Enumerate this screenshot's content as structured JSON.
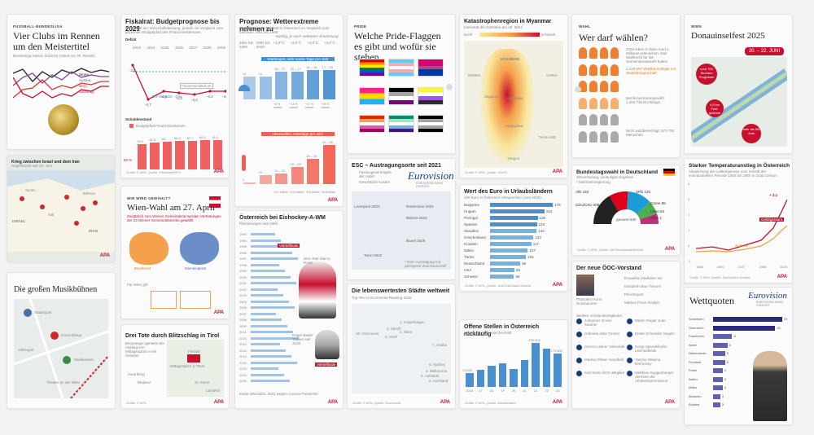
{
  "colors": {
    "red": "#c8102e",
    "blue": "#4a8fd0",
    "orange": "#f08030",
    "grey": "#888"
  },
  "c1": {
    "kicker": "FUSSBALL-BUNDESLIGA",
    "title": "Vier Clubs im Rennen um den Meistertitel",
    "sub": "Bundesliga-Saison 2024/25 (Stand vor 30. Runde)",
    "teams": [
      "Sturm",
      "Austria",
      "WAC",
      "Salzburg"
    ],
    "team_colors": [
      "#222",
      "#7a4a9a",
      "#d33",
      "#c8102e"
    ]
  },
  "c2": {
    "title": "Krieg zwischen Israel und dem Iran",
    "sub": "Angriffsziele seit 13. Juni",
    "labels": [
      "Syrien",
      "Irak",
      "ISRAEL",
      "Teheran",
      "IRAN"
    ]
  },
  "c3": {
    "title": "Die großen Musikbühnen",
    "labels": [
      "Staatsoper",
      "Volksoper",
      "Konzerthaus",
      "Musikverein",
      "Theater an der Wien"
    ]
  },
  "c4": {
    "title": "Fiskalrat: Budgetprognose bis 2029",
    "sub": "In Prozent der Wirtschaftsleistung, jeweils mit Vergleich zum geplanten Budgetpfad des Finanzministeriums",
    "defizit_label": "Defizit",
    "years": [
      "2023",
      "2024",
      "2025",
      "2026",
      "2027",
      "2028",
      "2029"
    ],
    "line_values": [
      -2.6,
      -4.7,
      -4.2,
      -4.3,
      -4.4,
      -4.2,
      -4.2
    ],
    "annotation": "EU-Vorgabe: -3 %",
    "ministry": "Finanzministerium",
    "schulden_label": "Schuldenstand",
    "schulden_legend": "Budgetpfad Finanzministerium",
    "debt_values": [
      78.5,
      81.8,
      84.0,
      86.3,
      87.7,
      89.4,
      91.1
    ],
    "pct_label": "60 %",
    "source": "Grafik: © APA, Quelle: Fiskalrat/WIFO"
  },
  "c5": {
    "kicker": "WIR WIRD GEWÄHLT?",
    "title": "Wien-Wahl am 27. April",
    "text": "Zusätzlich zum Wiener Gemeinderat werden Vertretungen der 23 Wiener Gemeindebezirke gewählt",
    "labels": [
      "Bezirksrat",
      "Gemeinderat"
    ],
    "footer": "Für Wien gilt:",
    "apa": "APA"
  },
  "c6": {
    "title": "Drei Tote durch Blitzschlag in Tirol",
    "text": "Bergsteiger gerieten bei Abstieg von Mittagsspitze in ein Gewitter",
    "labels": [
      "Vorarlberg",
      "Bludenz",
      "St. Anton",
      "Landeck",
      "Mittagsspitze 2.705m",
      "Fimbah"
    ],
    "source": "Grafik: © APA"
  },
  "c7": {
    "title": "Prognose: Wetterextreme nehmen zu",
    "sub": "Häufigkeit und Intensität in Österreich im Vergleich zum Zeitraum 1961 bis 1990",
    "scen": "Künftig, je nach weltweiter Erwärmung",
    "cols": [
      "1961 bis 1990",
      "1991 bis 2020",
      "+1,5°C",
      "+2,0°C",
      "+3,0°C",
      "+4,0°C"
    ],
    "b1_title": "Starkregen, sehr nasse Tage pro Jahr",
    "b1_vals": [
      "14",
      "14",
      "16 – 17",
      "16 – 17",
      "16 – 18",
      "17 – 18"
    ],
    "b1_pct": [
      "",
      "",
      "+6 % nasser",
      "+14 % nasser",
      "+17 % nasser",
      "+25 % nasser"
    ],
    "b2_title": "Hitzewellen, Hitzetage pro Jahr",
    "b2_vals": [
      "2",
      "12",
      "11 – 15",
      "15 – 23",
      "18 – 34",
      "24 – 55"
    ],
    "b2_pct": [
      "",
      "",
      "+2,1 heißer",
      "+3,5 heißer",
      "+5,6 heißer",
      "+6,8 heißer"
    ],
    "apa": "APA"
  },
  "c8": {
    "title": "Österreich bei Eishockey-A-WM",
    "sub": "Platzierungen seit 1993",
    "years": [
      "1993",
      "1994",
      "1995",
      "1996",
      "1997",
      "1998",
      "1999",
      "2000",
      "2001",
      "2002",
      "2003",
      "2004",
      "2005",
      "2007",
      "2008",
      "2009",
      "2011",
      "2013",
      "2015",
      "2018",
      "2019",
      "2022",
      "2023",
      "2024",
      "2025"
    ],
    "tag1": "Viertelfinale",
    "tag2": "Viertelfinale",
    "person1": "NHL-Star Marco Rossi",
    "person2": "Roger Bader Trainer seit 2018",
    "footer": "Keine WM 2020, 2021 wegen Corona-Pandemie"
  },
  "c9": {
    "kicker": "PRIDE",
    "title": "Welche Pride-Flaggen es gibt und wofür sie stehen"
  },
  "c10": {
    "title": "ESC – Austragungsorte seit 2021",
    "legend1": "Fassungsvermögen der Halle*",
    "legend2": "Geschätzte Kosten",
    "cities": [
      "Liverpool 2023",
      "Malmö 2024",
      "Turin 2022",
      "Basel 2025",
      "Rotterdam 2021"
    ],
    "esc": "EUROVISION SONG CONTEST",
    "note": "* ESC-Austragung mit geringerer Zuschauerzahl"
  },
  "c11": {
    "title": "Die lebenswertesten Städte weltweit",
    "sub": "Top-Ten im Economist-Ranking 2025",
    "cities": [
      "1. Kopenhagen",
      "2. Wien",
      "3. Zürich",
      "4. Melbourne",
      "5. Genf",
      "6. Sydney",
      "7. Osaka",
      "8. Auckland",
      "9. Adelaide",
      "10. Vancouver"
    ],
    "source": "Grafik: © APA, Quelle: Economist"
  },
  "c12": {
    "title": "Katastrophenregion in Myanmar",
    "sub": "Intensität der Erdstöße am 28. März",
    "leg_lo": "leicht",
    "leg_hi": "schwach",
    "labels": [
      "MYANMAR",
      "INDIEN",
      "CHINA",
      "THAILAND",
      "Mandalay",
      "Naypyidaw",
      "Yangon",
      "Sagaing"
    ],
    "source": "Grafik: © APA, Quelle: USGS"
  },
  "c13": {
    "title": "Wert des Euro in Urlaubsländern",
    "sub": "100 Euro in Österreich entsprechen (Juni 2025) ...",
    "countries": [
      "Bulgarien",
      "Ungarn",
      "Portugal",
      "Spanien",
      "Slowakei",
      "Griechenland",
      "Kroatien",
      "Italien",
      "Türkei",
      "Deutschland",
      "USA",
      "Schweiz"
    ],
    "values": [
      178,
      154,
      135,
      133,
      132,
      123,
      117,
      107,
      102,
      86,
      69,
      68
    ],
    "source": "Grafik: © APA, Quelle: UniCredit Bank Austria"
  },
  "c14": {
    "title": "Offene Stellen in Österreich rückläufig",
    "sub": "jeweils im Jahresdurchschnitt",
    "years": [
      "2016",
      "17",
      "18",
      "19",
      "20",
      "21",
      "22",
      "23",
      "24"
    ],
    "values": [
      73500,
      90000,
      110000,
      125000,
      95000,
      140000,
      230400,
      200000,
      173800
    ],
    "labels": [
      "73.500",
      "",
      "",
      "",
      "",
      "",
      "230.400",
      "",
      "173.800"
    ],
    "source": "Grafik: © APA, Quelle: Arbeitsmarkt"
  },
  "c15": {
    "kicker": "WAHL",
    "title": "Wer darf wählen?",
    "lines": [
      "2025 leben in Wien rund 2 Millionen Menschen. Das Wahlrecht für die Gemeinderatswahl haben",
      "1.129.507 Wahlberechtigte mit Staatsbürgerschaft",
      "Bezirksvertretungswahl: 1.364.745 EU-Bürger",
      "Nicht wahlberechtigt: 570.793 Menschen"
    ]
  },
  "c16": {
    "title": "Bundestagswahl in Deutschland",
    "sub": "Sitzverteilung, vorläufiges Ergebnis",
    "note": "* Mehrheitsregierung",
    "seats": [
      {
        "p": "CDU/CSU",
        "v": "208",
        "c": "#222"
      },
      {
        "p": "SPD",
        "v": "120",
        "c": "#e0001b"
      },
      {
        "p": "AfD",
        "v": "152",
        "c": "#1c9bd6"
      },
      {
        "p": "Grüne",
        "v": "85",
        "c": "#4caf50"
      },
      {
        "p": "Linke",
        "v": "64",
        "c": "#be3075"
      },
      {
        "p": "SSW",
        "v": "1",
        "c": "#003c8f"
      }
    ],
    "total": "gesamt 630",
    "source": "Grafik: © APA, Quelle: Die Bundeswahlleiterin"
  },
  "c17": {
    "title": "Der neue ÖOC-Vorstand",
    "president": "Präsident Horst Nussbaumer",
    "people": [
      "Roswitha Stadlober Ski",
      "Elisabeth Max-Theurer Pferdesport",
      "Markus Prock Rodeln",
      "Johannes Gross-Sautner",
      "Martin Poiger Judo",
      "Gabriela Jahn Turnen",
      "Dieter Schneider Segeln",
      "Gernot Leitner Volleyball",
      "Sonja Spendelhofer Leichtathletik",
      "Markus Plaser Handball",
      "Yasmin Stepina Eishockey",
      "Karl Stoss ÖOC-Mitglied",
      "Matthias Guggenberger Vertreter der Athletenkommission"
    ],
    "sub2": "Weitere Vorstandsmitglieder"
  },
  "c18": {
    "kicker": "WIEN",
    "title": "Donauinselfest 2025",
    "dates": "20. – 22. JUNI",
    "badges": [
      "rund 700 Stunden Programm",
      "4,5 km Fest-gelände",
      "mehr als 500 Acts"
    ]
  },
  "c19": {
    "title": "Starker Temperaturanstieg in Österreich",
    "sub": "Abweichung der Lufttemperatur vom Schnitt der vorindustriellen Periode 1850 bis 1900 in Grad Celsius",
    "x_ticks": [
      "1850",
      "1900",
      "1947",
      "1988",
      "2020"
    ],
    "y_ticks": [
      "4",
      "3",
      "2",
      "1",
      "0",
      "-1"
    ],
    "label_a": "Gebirgsraum",
    "label_b": "weltweit",
    "peak": "+ 3,1",
    "source": "Grafik: © APA, Quelle: GeoSphere Austria"
  },
  "c20": {
    "title": "Wettquoten",
    "esc": "EUROVISION SONG CONTEST",
    "countries": [
      "Schweden",
      "Österreich",
      "Frankreich",
      "Israel",
      "Niederlande",
      "Finnland",
      "Polen",
      "Italien",
      "Malta",
      "Albanien",
      "Estland"
    ],
    "values": [
      29,
      26,
      8,
      6,
      5,
      5,
      4,
      4,
      4,
      3,
      3
    ]
  }
}
